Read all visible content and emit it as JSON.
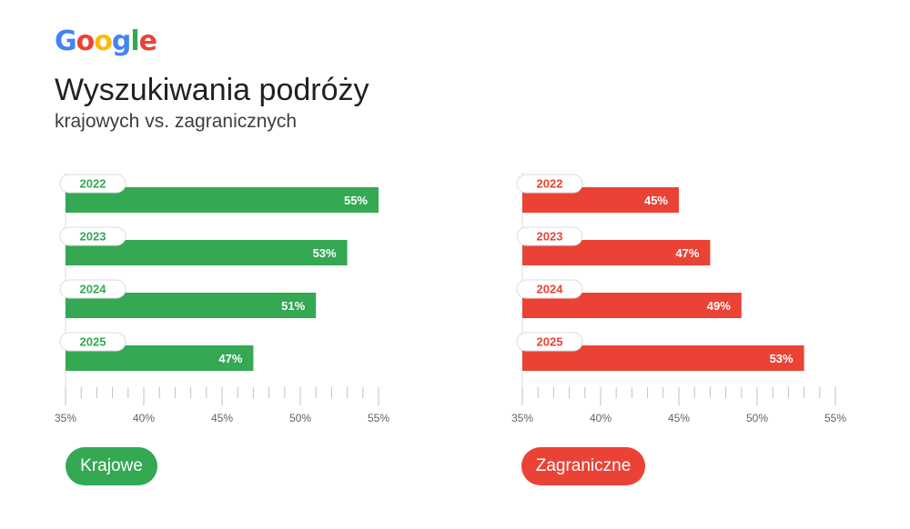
{
  "header": {
    "logo": [
      "G",
      "o",
      "o",
      "g",
      "l",
      "e"
    ],
    "logo_colors": [
      "#4285F4",
      "#EA4335",
      "#FBBC05",
      "#4285F4",
      "#34A853",
      "#EA4335"
    ],
    "title": "Wyszukiwania podróży",
    "subtitle": "krajowych vs. zagranicznych"
  },
  "chart_data": [
    {
      "type": "bar",
      "orientation": "horizontal",
      "categories": [
        "2022",
        "2023",
        "2024",
        "2025"
      ],
      "values": [
        55,
        53,
        51,
        47
      ],
      "value_labels": [
        "55%",
        "53%",
        "51%",
        "47%"
      ],
      "series_name": "Krajowe",
      "color": "#34A853",
      "xlim": [
        35,
        55
      ],
      "ticks": [
        35,
        40,
        45,
        50,
        55
      ],
      "tick_labels": [
        "35%",
        "40%",
        "45%",
        "50%",
        "55%"
      ],
      "legend": "bottom-left"
    },
    {
      "type": "bar",
      "orientation": "horizontal",
      "categories": [
        "2022",
        "2023",
        "2024",
        "2025"
      ],
      "values": [
        45,
        47,
        49,
        53
      ],
      "value_labels": [
        "45%",
        "47%",
        "49%",
        "53%"
      ],
      "series_name": "Zagraniczne",
      "color": "#EA4335",
      "xlim": [
        35,
        55
      ],
      "ticks": [
        35,
        40,
        45,
        50,
        55
      ],
      "tick_labels": [
        "35%",
        "40%",
        "45%",
        "50%",
        "55%"
      ],
      "legend": "bottom-left"
    }
  ],
  "legend": {
    "left_label": "Krajowe",
    "right_label": "Zagraniczne"
  }
}
